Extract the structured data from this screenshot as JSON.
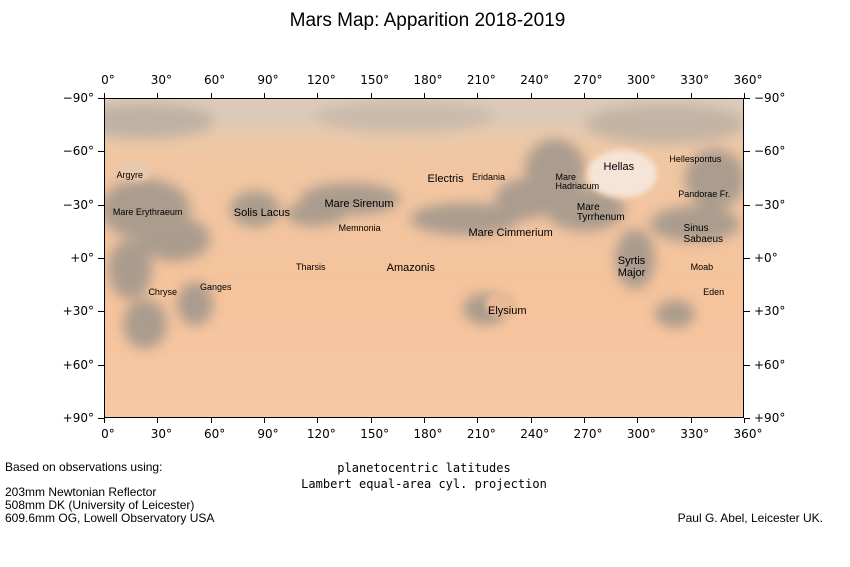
{
  "title": "Mars Map: Apparition 2018-2019",
  "longitude_labels": [
    "0°",
    "30°",
    "60°",
    "90°",
    "120°",
    "150°",
    "180°",
    "210°",
    "240°",
    "270°",
    "300°",
    "330°",
    "360°"
  ],
  "latitude_labels": [
    "−90°",
    "−60°",
    "−30°",
    "+0°",
    "+30°",
    "+60°",
    "+90°"
  ],
  "features": [
    {
      "name": "Argyre",
      "lon": 7,
      "lat": -49,
      "size": "small"
    },
    {
      "name": "Mare Erythraeum",
      "lon": 5,
      "lat": -28,
      "size": "small"
    },
    {
      "name": "Solis Lacus",
      "lon": 73,
      "lat": -28,
      "size": "large"
    },
    {
      "name": "Mare Sirenum",
      "lon": 124,
      "lat": -33,
      "size": "large"
    },
    {
      "name": "Memnonia",
      "lon": 132,
      "lat": -19,
      "size": "small"
    },
    {
      "name": "Electris",
      "lon": 182,
      "lat": -47,
      "size": "large"
    },
    {
      "name": "Eridania",
      "lon": 207,
      "lat": -48,
      "size": "small"
    },
    {
      "name": "Mare Cimmerium",
      "lon": 205,
      "lat": -17,
      "size": "large"
    },
    {
      "name": "Mare\nHadriacum",
      "lon": 254,
      "lat": -48,
      "size": "small"
    },
    {
      "name": "Hellas",
      "lon": 281,
      "lat": -54,
      "size": "large"
    },
    {
      "name": "Hellespontus",
      "lon": 318,
      "lat": -58,
      "size": "small"
    },
    {
      "name": "Pandorae Fr.",
      "lon": 323,
      "lat": -38,
      "size": "small"
    },
    {
      "name": "Mare\nTyrrhenum",
      "lon": 266,
      "lat": -31,
      "size": "mid"
    },
    {
      "name": "Sinus\nSabaeus",
      "lon": 326,
      "lat": -19,
      "size": "mid"
    },
    {
      "name": "Tharsis",
      "lon": 108,
      "lat": 3,
      "size": "small"
    },
    {
      "name": "Amazonis",
      "lon": 159,
      "lat": 3,
      "size": "large"
    },
    {
      "name": "Syrtis\nMajor",
      "lon": 289,
      "lat": -1,
      "size": "large"
    },
    {
      "name": "Moab",
      "lon": 330,
      "lat": 3,
      "size": "small"
    },
    {
      "name": "Eden",
      "lon": 337,
      "lat": 17,
      "size": "small"
    },
    {
      "name": "Ganges",
      "lon": 54,
      "lat": 14,
      "size": "small"
    },
    {
      "name": "Chryse",
      "lon": 25,
      "lat": 17,
      "size": "small"
    },
    {
      "name": "Elysium",
      "lon": 216,
      "lat": 27,
      "size": "large"
    }
  ],
  "projection": {
    "line1": "planetocentric latitudes",
    "line2": "Lambert equal-area cyl. projection"
  },
  "observations": {
    "heading": "Based on observations using:",
    "instruments": [
      "203mm Newtonian Reflector",
      "508mm DK (University of Leicester)",
      "609.6mm OG, Lowell Observatory USA"
    ]
  },
  "credit": "Paul G. Abel, Leicester UK.",
  "colors": {
    "surface_light": "#f3c29c",
    "surface_mid": "#efbb94",
    "dark_marking": "#a89e90",
    "polar_haze": "#d8c9b6",
    "axis": "#000000"
  }
}
